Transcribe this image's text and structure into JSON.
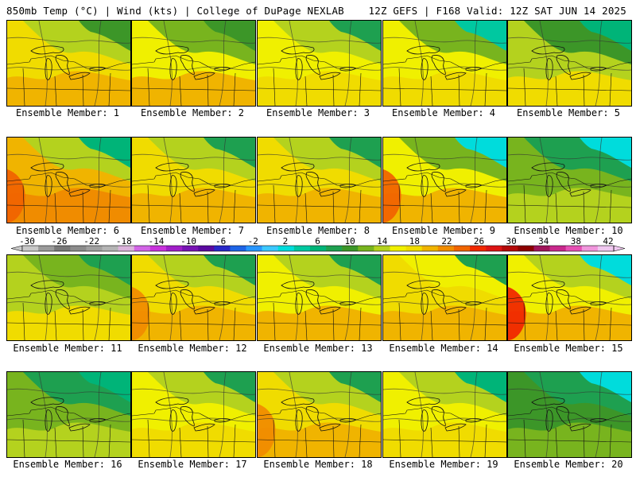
{
  "header": {
    "left_title": "850mb Temp (°C) | Wind (kts) | College of DuPage NEXLAB",
    "right_title": "12Z GEFS | F168 Valid: 12Z SAT JUN 14 2025"
  },
  "colorbar": {
    "labels": [
      "-30",
      "-26",
      "-22",
      "-18",
      "-14",
      "-10",
      "-6",
      "-2",
      "2",
      "6",
      "10",
      "14",
      "18",
      "22",
      "26",
      "30",
      "34",
      "38",
      "42"
    ],
    "colors": [
      "#c8c8c8",
      "#9a9a9a",
      "#787878",
      "#8c8c8c",
      "#a0a0a0",
      "#b4b4b4",
      "#dcb4dc",
      "#d264e6",
      "#c832dc",
      "#a01ec8",
      "#7814b4",
      "#5a0aa0",
      "#2828c8",
      "#1e64e6",
      "#2896ff",
      "#3cc8ff",
      "#00dcdc",
      "#00c8a0",
      "#00b478",
      "#1ea050",
      "#3c9628",
      "#78b41e",
      "#b4d21e",
      "#f0f000",
      "#f0dc00",
      "#f0b400",
      "#f08c00",
      "#f06400",
      "#f02800",
      "#dc1414",
      "#b40a0a",
      "#8c0000",
      "#a0145a",
      "#c8288c",
      "#e650b4",
      "#f096dc",
      "#f0c8f0"
    ]
  },
  "members": [
    {
      "label": "Ensemble Member: 1",
      "bg": "#f0b400",
      "mid": "#f0dc00",
      "north": "#b4d21e",
      "ne": "#3c9628",
      "hot": null
    },
    {
      "label": "Ensemble Member: 2",
      "bg": "#f0b400",
      "mid": "#f0f000",
      "north": "#78b41e",
      "ne": "#3c9628",
      "hot": null
    },
    {
      "label": "Ensemble Member: 3",
      "bg": "#f0dc00",
      "mid": "#f0f000",
      "north": "#b4d21e",
      "ne": "#1ea050",
      "hot": null
    },
    {
      "label": "Ensemble Member: 4",
      "bg": "#f0dc00",
      "mid": "#f0f000",
      "north": "#78b41e",
      "ne": "#00c8a0",
      "hot": null
    },
    {
      "label": "Ensemble Member: 5",
      "bg": "#f0dc00",
      "mid": "#b4d21e",
      "north": "#3c9628",
      "ne": "#00b478",
      "hot": null
    },
    {
      "label": "Ensemble Member: 6",
      "bg": "#f08c00",
      "mid": "#f0b400",
      "north": "#b4d21e",
      "ne": "#00b478",
      "hot": "#f06400"
    },
    {
      "label": "Ensemble Member: 7",
      "bg": "#f0b400",
      "mid": "#f0dc00",
      "north": "#b4d21e",
      "ne": "#1ea050",
      "hot": null
    },
    {
      "label": "Ensemble Member: 8",
      "bg": "#f0b400",
      "mid": "#f0dc00",
      "north": "#b4d21e",
      "ne": "#1ea050",
      "hot": null
    },
    {
      "label": "Ensemble Member: 9",
      "bg": "#f0b400",
      "mid": "#f0f000",
      "north": "#78b41e",
      "ne": "#00dcdc",
      "hot": "#f06400"
    },
    {
      "label": "Ensemble Member: 10",
      "bg": "#b4d21e",
      "mid": "#78b41e",
      "north": "#1ea050",
      "ne": "#00dcdc",
      "hot": null
    },
    {
      "label": "Ensemble Member: 11",
      "bg": "#f0dc00",
      "mid": "#b4d21e",
      "north": "#78b41e",
      "ne": "#1ea050",
      "hot": null
    },
    {
      "label": "Ensemble Member: 12",
      "bg": "#f0b400",
      "mid": "#f0dc00",
      "north": "#b4d21e",
      "ne": "#1ea050",
      "hot": "#f08c00"
    },
    {
      "label": "Ensemble Member: 13",
      "bg": "#f0b400",
      "mid": "#f0f000",
      "north": "#b4d21e",
      "ne": "#1ea050",
      "hot": null
    },
    {
      "label": "Ensemble Member: 14",
      "bg": "#f0b400",
      "mid": "#f0dc00",
      "north": "#f0f000",
      "ne": "#1ea050",
      "hot": null
    },
    {
      "label": "Ensemble Member: 15",
      "bg": "#f0b400",
      "mid": "#f0f000",
      "north": "#b4d21e",
      "ne": "#00dcdc",
      "hot": "#f02800"
    },
    {
      "label": "Ensemble Member: 16",
      "bg": "#b4d21e",
      "mid": "#78b41e",
      "north": "#1ea050",
      "ne": "#00b478",
      "hot": null
    },
    {
      "label": "Ensemble Member: 17",
      "bg": "#f0dc00",
      "mid": "#f0f000",
      "north": "#b4d21e",
      "ne": "#1ea050",
      "hot": null
    },
    {
      "label": "Ensemble Member: 18",
      "bg": "#f0b400",
      "mid": "#f0dc00",
      "north": "#b4d21e",
      "ne": "#1ea050",
      "hot": "#f08c00"
    },
    {
      "label": "Ensemble Member: 19",
      "bg": "#f0dc00",
      "mid": "#f0f000",
      "north": "#b4d21e",
      "ne": "#00b478",
      "hot": null
    },
    {
      "label": "Ensemble Member: 20",
      "bg": "#78b41e",
      "mid": "#3c9628",
      "north": "#1ea050",
      "ne": "#00dcdc",
      "hot": null
    }
  ]
}
